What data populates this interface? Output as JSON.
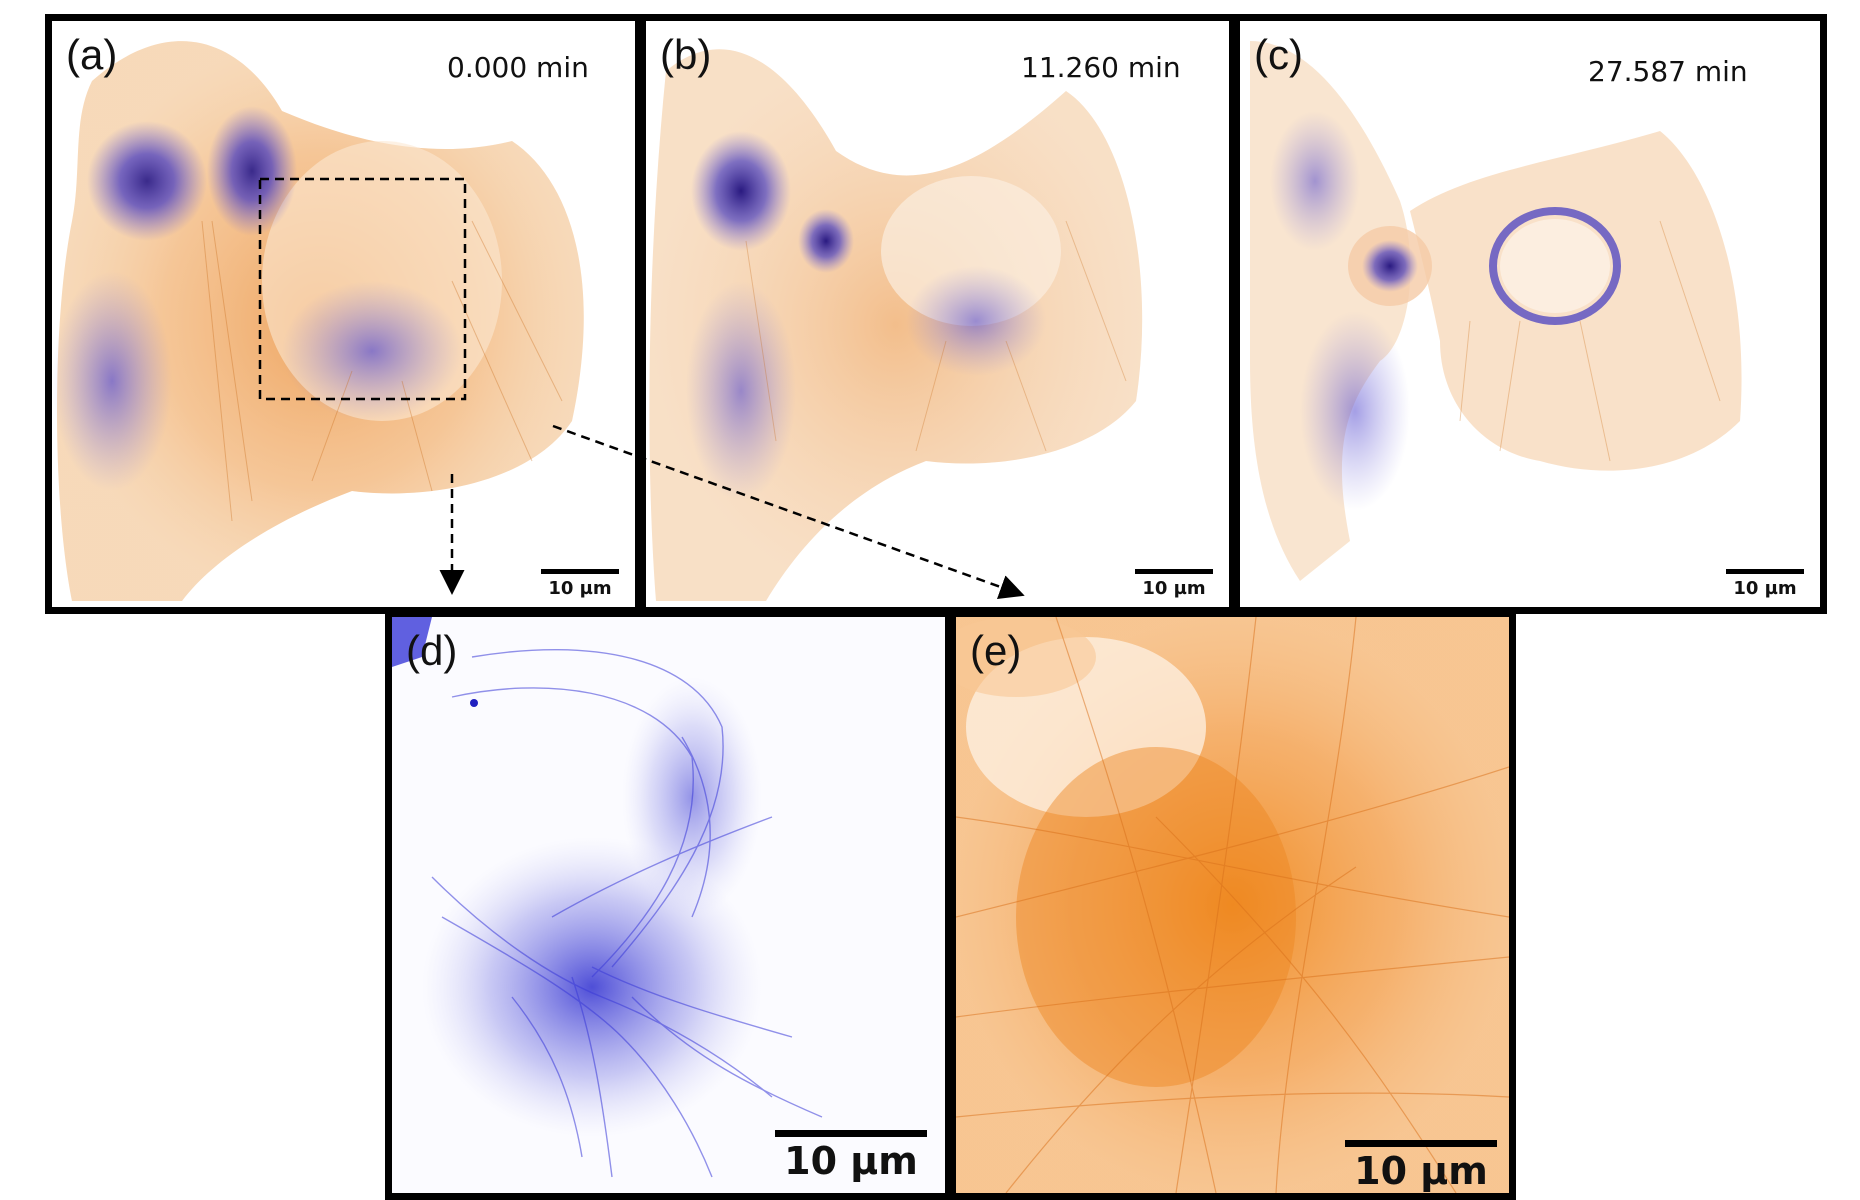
{
  "figure": {
    "panels": [
      {
        "id": "a",
        "label": "(a)",
        "time": "0.000 min",
        "scale_bar": "10 µm"
      },
      {
        "id": "b",
        "label": "(b)",
        "time": "11.260 min",
        "scale_bar": "10 µm"
      },
      {
        "id": "c",
        "label": "(c)",
        "time": "27.587 min",
        "scale_bar": "10 µm"
      },
      {
        "id": "d",
        "label": "(d)",
        "scale_bar": "10 µm"
      },
      {
        "id": "e",
        "label": "(e)",
        "scale_bar": "10 µm"
      }
    ],
    "colors": {
      "microtubule_blue": "#3a3ad8",
      "actin_orange": "#f08a1e",
      "border": "#000000"
    }
  }
}
